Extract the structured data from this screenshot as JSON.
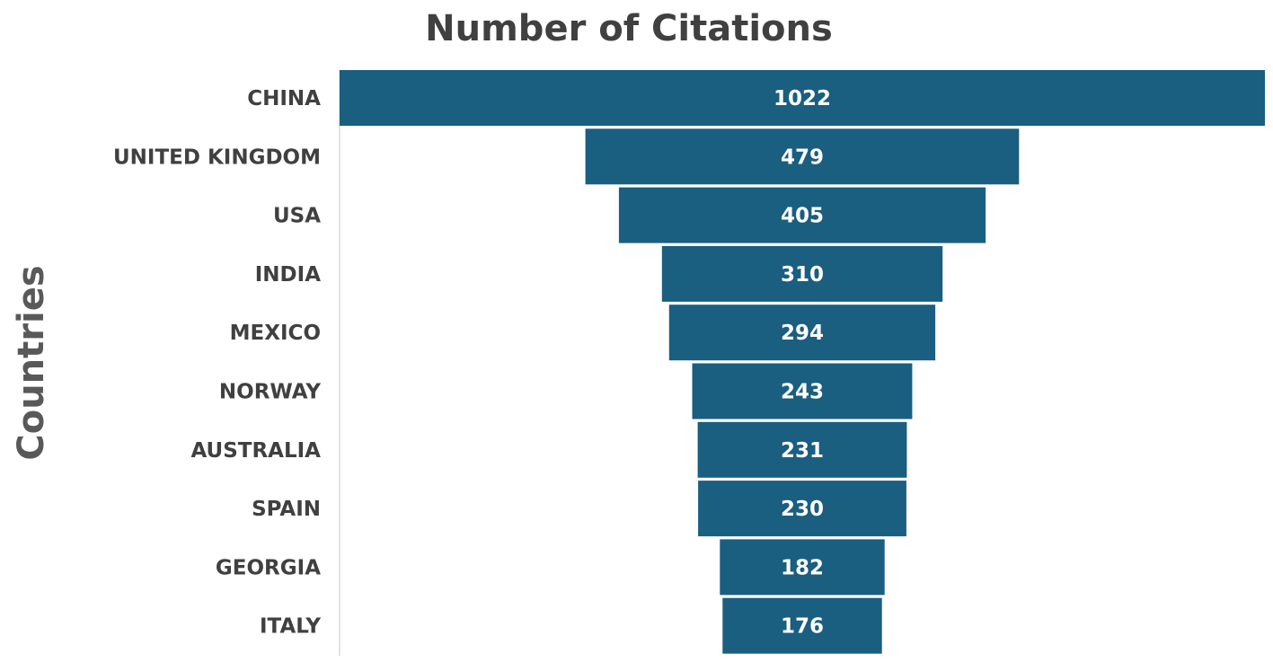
{
  "chart_data": {
    "type": "bar",
    "orientation": "horizontal",
    "layout": "funnel",
    "title": "Number of Citations",
    "ylabel": "Countries",
    "xlabel": "",
    "categories": [
      "CHINA",
      "UNITED KINGDOM",
      "USA",
      "INDIA",
      "MEXICO",
      "NORWAY",
      "AUSTRALIA",
      "SPAIN",
      "GEORGIA",
      "ITALY"
    ],
    "values": [
      1022,
      479,
      405,
      310,
      294,
      243,
      231,
      230,
      182,
      176
    ],
    "data_labels": [
      "1022",
      "479",
      "405",
      "310",
      "294",
      "243",
      "231",
      "230",
      "182",
      "176"
    ],
    "bar_color": "#1a5e80",
    "grid": false,
    "legend": "none"
  }
}
